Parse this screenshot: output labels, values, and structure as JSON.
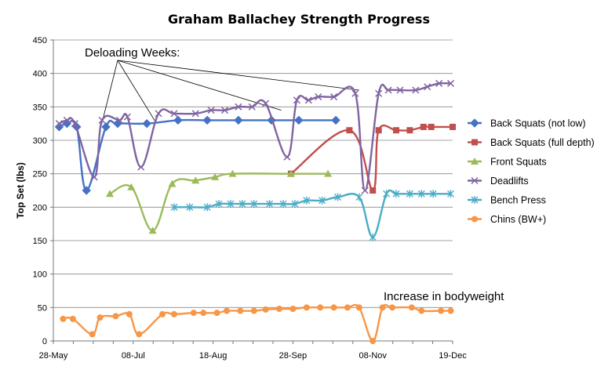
{
  "chart_data": {
    "type": "line",
    "title": "Graham Ballachey Strength Progress",
    "ylabel": "Top Set (lbs)",
    "xlabel": "",
    "ylim": [
      0,
      450
    ],
    "yticks": [
      0,
      50,
      100,
      150,
      200,
      250,
      300,
      350,
      400,
      450
    ],
    "xlim": [
      "2012-05-28",
      "2012-12-19"
    ],
    "xtick_labels": [
      "28-May",
      "08-Jul",
      "18-Aug",
      "28-Sep",
      "08-Nov",
      "19-Dec"
    ],
    "grid": "horizontal",
    "legend": "right",
    "annotations": [
      {
        "text": "Deloading Weeks:",
        "points": [
          [
            "2012-06-21",
            315
          ],
          [
            "2012-07-20",
            325
          ],
          [
            "2012-09-22",
            345
          ],
          [
            "2012-11-01",
            375
          ]
        ]
      },
      {
        "text": "Increase in bodyweight"
      }
    ],
    "series": [
      {
        "name": "Back Squats (not low)",
        "color": "#4472C4",
        "marker": "diamond",
        "points": [
          [
            "2012-05-31",
            320
          ],
          [
            "2012-06-04",
            325
          ],
          [
            "2012-06-09",
            320
          ],
          [
            "2012-06-14",
            225
          ],
          [
            "2012-06-24",
            320
          ],
          [
            "2012-06-30",
            325
          ],
          [
            "2012-07-15",
            325
          ],
          [
            "2012-07-31",
            330
          ],
          [
            "2012-08-15",
            330
          ],
          [
            "2012-08-31",
            330
          ],
          [
            "2012-09-17",
            330
          ],
          [
            "2012-10-01",
            330
          ],
          [
            "2012-10-20",
            330
          ]
        ]
      },
      {
        "name": "Back Squats (full depth)",
        "color": "#C0504D",
        "marker": "square",
        "points": [
          [
            "2012-09-27",
            250
          ],
          [
            "2012-10-27",
            315
          ],
          [
            "2012-11-08",
            225
          ],
          [
            "2012-11-11",
            315
          ],
          [
            "2012-11-20",
            315
          ],
          [
            "2012-11-27",
            315
          ],
          [
            "2012-12-04",
            320
          ],
          [
            "2012-12-08",
            320
          ],
          [
            "2012-12-19",
            320
          ]
        ]
      },
      {
        "name": "Front Squats",
        "color": "#9BBB59",
        "marker": "triangle",
        "points": [
          [
            "2012-06-26",
            220
          ],
          [
            "2012-07-07",
            230
          ],
          [
            "2012-07-18",
            165
          ],
          [
            "2012-07-28",
            235
          ],
          [
            "2012-08-09",
            240
          ],
          [
            "2012-08-19",
            245
          ],
          [
            "2012-08-28",
            250
          ],
          [
            "2012-09-27",
            250
          ],
          [
            "2012-10-16",
            250
          ]
        ]
      },
      {
        "name": "Deadlifts",
        "color": "#8064A2",
        "marker": "x",
        "points": [
          [
            "2012-05-31",
            325
          ],
          [
            "2012-06-04",
            330
          ],
          [
            "2012-06-08",
            325
          ],
          [
            "2012-06-18",
            245
          ],
          [
            "2012-06-22",
            330
          ],
          [
            "2012-07-01",
            330
          ],
          [
            "2012-07-05",
            335
          ],
          [
            "2012-07-12",
            260
          ],
          [
            "2012-07-21",
            340
          ],
          [
            "2012-07-29",
            340
          ],
          [
            "2012-08-09",
            340
          ],
          [
            "2012-08-17",
            345
          ],
          [
            "2012-08-24",
            345
          ],
          [
            "2012-08-31",
            350
          ],
          [
            "2012-09-07",
            350
          ],
          [
            "2012-09-14",
            355
          ],
          [
            "2012-09-25",
            275
          ],
          [
            "2012-09-30",
            360
          ],
          [
            "2012-10-06",
            360
          ],
          [
            "2012-10-11",
            365
          ],
          [
            "2012-10-19",
            365
          ],
          [
            "2012-10-30",
            370
          ],
          [
            "2012-11-04",
            225
          ],
          [
            "2012-11-11",
            370
          ],
          [
            "2012-11-16",
            375
          ],
          [
            "2012-11-22",
            375
          ],
          [
            "2012-11-30",
            375
          ],
          [
            "2012-12-06",
            380
          ],
          [
            "2012-12-12",
            385
          ],
          [
            "2012-12-18",
            385
          ]
        ]
      },
      {
        "name": "Bench Press",
        "color": "#4BACC6",
        "marker": "star",
        "points": [
          [
            "2012-07-29",
            200
          ],
          [
            "2012-08-06",
            200
          ],
          [
            "2012-08-15",
            200
          ],
          [
            "2012-08-21",
            205
          ],
          [
            "2012-08-27",
            205
          ],
          [
            "2012-09-02",
            205
          ],
          [
            "2012-09-08",
            205
          ],
          [
            "2012-09-16",
            205
          ],
          [
            "2012-09-23",
            205
          ],
          [
            "2012-09-29",
            205
          ],
          [
            "2012-10-05",
            210
          ],
          [
            "2012-10-13",
            210
          ],
          [
            "2012-10-21",
            215
          ],
          [
            "2012-11-01",
            215
          ],
          [
            "2012-11-08",
            155
          ],
          [
            "2012-11-15",
            220
          ],
          [
            "2012-11-20",
            220
          ],
          [
            "2012-11-27",
            220
          ],
          [
            "2012-12-03",
            220
          ],
          [
            "2012-12-09",
            220
          ],
          [
            "2012-12-18",
            220
          ]
        ]
      },
      {
        "name": "Chins (BW+)",
        "color": "#F79646",
        "marker": "circle",
        "points": [
          [
            "2012-06-02",
            33
          ],
          [
            "2012-06-07",
            33
          ],
          [
            "2012-06-17",
            10
          ],
          [
            "2012-06-21",
            35
          ],
          [
            "2012-06-29",
            37
          ],
          [
            "2012-07-06",
            40
          ],
          [
            "2012-07-11",
            10
          ],
          [
            "2012-07-23",
            40
          ],
          [
            "2012-07-29",
            40
          ],
          [
            "2012-08-08",
            42
          ],
          [
            "2012-08-13",
            42
          ],
          [
            "2012-08-20",
            42
          ],
          [
            "2012-08-25",
            45
          ],
          [
            "2012-09-01",
            45
          ],
          [
            "2012-09-08",
            45
          ],
          [
            "2012-09-14",
            47
          ],
          [
            "2012-09-21",
            48
          ],
          [
            "2012-09-28",
            48
          ],
          [
            "2012-10-05",
            50
          ],
          [
            "2012-10-12",
            50
          ],
          [
            "2012-10-19",
            50
          ],
          [
            "2012-10-26",
            50
          ],
          [
            "2012-11-01",
            50
          ],
          [
            "2012-11-08",
            0
          ],
          [
            "2012-11-13",
            50
          ],
          [
            "2012-11-18",
            50
          ],
          [
            "2012-11-28",
            50
          ],
          [
            "2012-12-03",
            45
          ],
          [
            "2012-12-13",
            45
          ],
          [
            "2012-12-18",
            45
          ]
        ]
      }
    ]
  }
}
